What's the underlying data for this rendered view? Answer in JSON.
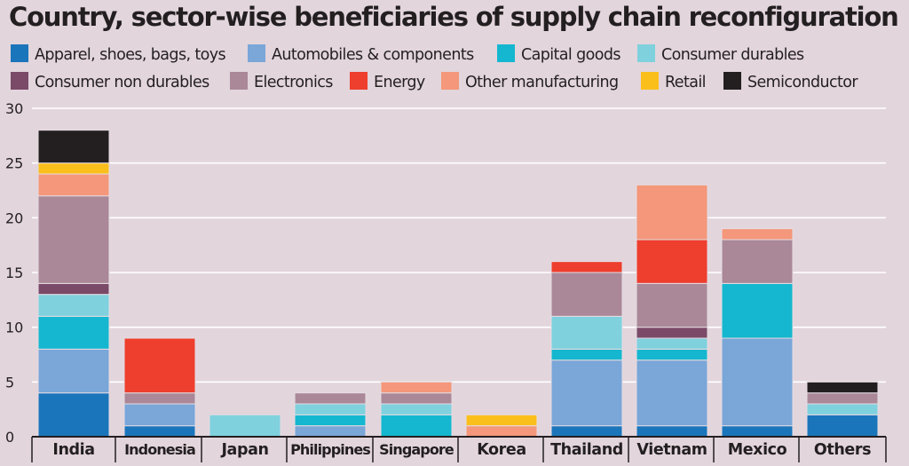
{
  "chart_data": {
    "type": "bar",
    "stacked": true,
    "title": "Country, sector-wise beneficiaries of supply chain reconfiguration",
    "xlabel": "",
    "ylabel": "",
    "ylim": [
      0,
      30
    ],
    "yticks": [
      0,
      5,
      10,
      15,
      20,
      25,
      30
    ],
    "grid": true,
    "legend_position": "top",
    "categories": [
      "India",
      "Indonesia",
      "Japan",
      "Philippines",
      "Singapore",
      "Korea",
      "Thailand",
      "Vietnam",
      "Mexico",
      "Others"
    ],
    "series": [
      {
        "name": "Apparel, shoes, bags, toys",
        "color": "#1b75bb",
        "values": [
          4,
          1,
          0,
          0,
          0,
          0,
          1,
          1,
          1,
          2
        ]
      },
      {
        "name": "Automobiles & components",
        "color": "#7aa6d8",
        "values": [
          4,
          2,
          0,
          1,
          0,
          0,
          6,
          6,
          8,
          0
        ]
      },
      {
        "name": "Capital goods",
        "color": "#14b7cf",
        "values": [
          3,
          0,
          0,
          1,
          2,
          0,
          1,
          1,
          5,
          0
        ]
      },
      {
        "name": "Consumer durables",
        "color": "#7fd1de",
        "values": [
          2,
          0,
          2,
          1,
          1,
          0,
          3,
          1,
          0,
          1
        ]
      },
      {
        "name": "Consumer non durables",
        "color": "#7a4a68",
        "values": [
          1,
          0,
          0,
          0,
          0,
          0,
          0,
          1,
          0,
          0
        ]
      },
      {
        "name": "Electronics",
        "color": "#aa8898",
        "values": [
          8,
          1,
          0,
          1,
          1,
          0,
          4,
          4,
          4,
          1
        ]
      },
      {
        "name": "Energy",
        "color": "#ee3e2d",
        "values": [
          0,
          5,
          0,
          0,
          0,
          0,
          1,
          4,
          0,
          0
        ]
      },
      {
        "name": "Other manufacturing",
        "color": "#f4977a",
        "values": [
          2,
          0,
          0,
          0,
          1,
          1,
          0,
          5,
          1,
          0
        ]
      },
      {
        "name": "Retail",
        "color": "#fbbf1c",
        "values": [
          1,
          0,
          0,
          0,
          0,
          1,
          0,
          0,
          0,
          0
        ]
      },
      {
        "name": "Semiconductor",
        "color": "#231f20",
        "values": [
          3,
          0,
          0,
          0,
          0,
          0,
          0,
          0,
          0,
          1
        ]
      }
    ]
  }
}
